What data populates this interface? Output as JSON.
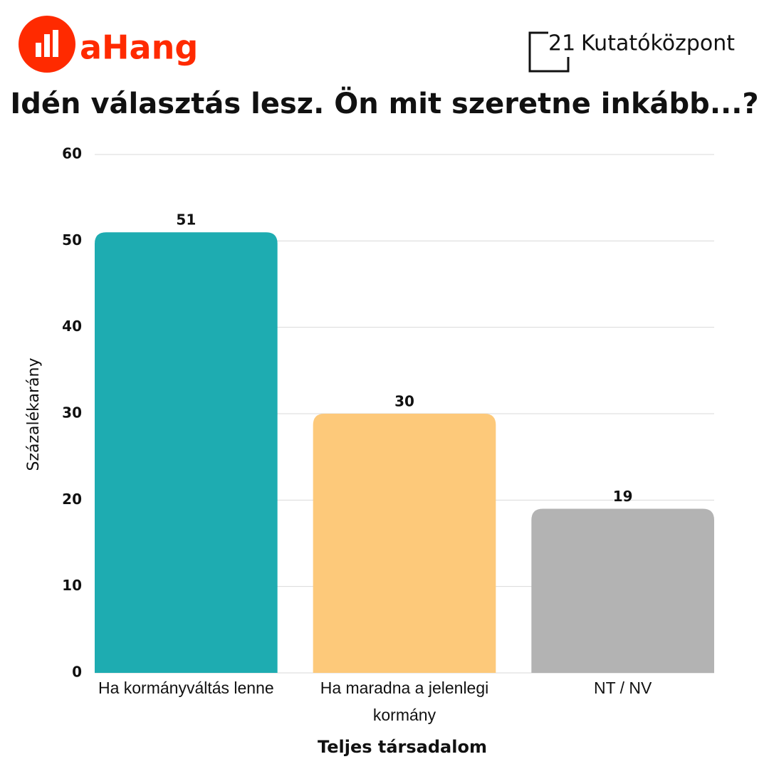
{
  "logos": {
    "left": "aHang",
    "right_number": "21",
    "right_name": "Kutatóközpont"
  },
  "chart_data": {
    "type": "bar",
    "title": "Idén választás lesz. Ön mit szeretne inkább...?",
    "x_label": "Teljes társadalom",
    "y_label": "Százalékarány",
    "categories": [
      "Ha kormányváltás lenne",
      "Ha maradna a jelenlegi kormány",
      "NT / NV"
    ],
    "values": [
      51,
      30,
      19
    ],
    "colors": [
      "#1eacb1",
      "#fdc97a",
      "#b3b3b3"
    ],
    "ylim": [
      0,
      60
    ],
    "yticks": [
      0,
      10,
      20,
      30,
      40,
      50,
      60
    ],
    "grid": true
  }
}
